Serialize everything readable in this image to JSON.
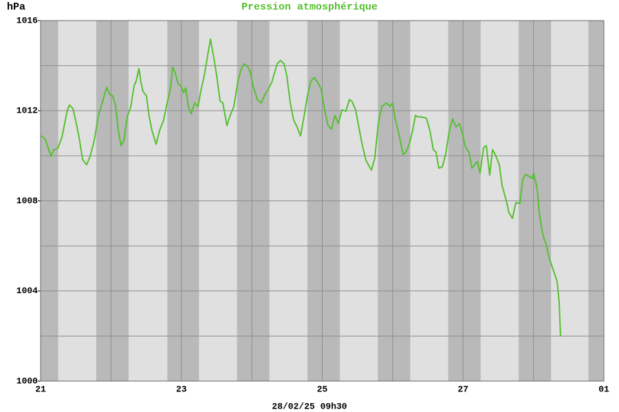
{
  "chart_data": {
    "type": "line",
    "title": "Pression atmosphérique",
    "y_label": "hPa",
    "x_label": "28/02/25 09h30",
    "xlim": [
      21,
      29
    ],
    "xticks": [
      21,
      23,
      25,
      27,
      {
        "value": 29,
        "label": "01"
      }
    ],
    "minor_xticks": [
      22,
      24,
      26,
      28
    ],
    "ylim": [
      1000,
      1016
    ],
    "yticks": [
      1000,
      1004,
      1008,
      1012,
      1016
    ],
    "minor_yticks": [
      1002,
      1006,
      1010,
      1014
    ],
    "grid": true,
    "background_color": "#e0e0e0",
    "shade_color": "#b9b9b9",
    "shaded_ranges": [
      [
        21.0,
        21.25
      ],
      [
        21.79,
        22.25
      ],
      [
        22.8,
        23.25
      ],
      [
        23.79,
        24.25
      ],
      [
        24.79,
        25.25
      ],
      [
        25.79,
        26.25
      ],
      [
        26.79,
        27.25
      ],
      [
        27.79,
        28.25
      ],
      [
        28.78,
        29.0
      ]
    ],
    "series": [
      {
        "name": "Pression",
        "color": "#55c030",
        "x": [
          21.0,
          21.068,
          21.147,
          21.186,
          21.244,
          21.303,
          21.381,
          21.41,
          21.459,
          21.498,
          21.547,
          21.596,
          21.654,
          21.703,
          21.762,
          21.821,
          21.889,
          21.938,
          21.977,
          22.026,
          22.065,
          22.104,
          22.143,
          22.182,
          22.231,
          22.28,
          22.328,
          22.358,
          22.397,
          22.426,
          22.455,
          22.504,
          22.543,
          22.582,
          22.641,
          22.69,
          22.748,
          22.797,
          22.846,
          22.875,
          22.915,
          22.954,
          22.993,
          23.032,
          23.061,
          23.1,
          23.139,
          23.188,
          23.237,
          23.276,
          23.325,
          23.374,
          23.413,
          23.462,
          23.501,
          23.549,
          23.589,
          23.647,
          23.686,
          23.745,
          23.803,
          23.852,
          23.891,
          23.94,
          23.979,
          24.018,
          24.077,
          24.136,
          24.184,
          24.233,
          24.282,
          24.311,
          24.36,
          24.409,
          24.458,
          24.497,
          24.546,
          24.595,
          24.643,
          24.692,
          24.741,
          24.79,
          24.839,
          24.888,
          24.937,
          24.985,
          25.034,
          25.083,
          25.132,
          25.181,
          25.23,
          25.278,
          25.337,
          25.386,
          25.425,
          25.474,
          25.523,
          25.571,
          25.62,
          25.698,
          25.747,
          25.796,
          25.845,
          25.913,
          25.962,
          26.001,
          26.04,
          26.089,
          26.148,
          26.187,
          26.236,
          26.284,
          26.324,
          26.353,
          26.402,
          26.48,
          26.529,
          26.578,
          26.617,
          26.656,
          26.705,
          26.753,
          26.802,
          26.851,
          26.9,
          26.949,
          26.988,
          27.037,
          27.085,
          27.125,
          27.164,
          27.203,
          27.242,
          27.291,
          27.33,
          27.379,
          27.418,
          27.457,
          27.515,
          27.554,
          27.613,
          27.652,
          27.701,
          27.75,
          27.808,
          27.847,
          27.886,
          27.945,
          27.984,
          28.004,
          28.053,
          28.082,
          28.121,
          28.15,
          28.179,
          28.209,
          28.238,
          28.287,
          28.336,
          28.365,
          28.385
        ],
        "values": [
          1010.91,
          1010.73,
          1009.97,
          1010.27,
          1010.33,
          1010.82,
          1012.04,
          1012.25,
          1012.1,
          1011.58,
          1010.82,
          1009.84,
          1009.6,
          1009.97,
          1010.67,
          1011.79,
          1012.5,
          1013.04,
          1012.74,
          1012.65,
          1012.22,
          1011.12,
          1010.45,
          1010.67,
          1011.73,
          1012.16,
          1013.1,
          1013.32,
          1013.87,
          1013.26,
          1012.86,
          1012.65,
          1011.73,
          1011.12,
          1010.51,
          1011.12,
          1011.58,
          1012.34,
          1013.01,
          1013.93,
          1013.65,
          1013.2,
          1013.1,
          1012.8,
          1013.01,
          1012.19,
          1011.86,
          1012.34,
          1012.19,
          1012.89,
          1013.56,
          1014.48,
          1015.18,
          1014.32,
          1013.56,
          1012.43,
          1012.34,
          1011.34,
          1011.73,
          1012.19,
          1013.32,
          1013.87,
          1014.08,
          1013.96,
          1013.71,
          1013.1,
          1012.5,
          1012.34,
          1012.71,
          1012.95,
          1013.26,
          1013.56,
          1014.08,
          1014.23,
          1014.08,
          1013.56,
          1012.34,
          1011.58,
          1011.28,
          1010.88,
          1011.73,
          1012.65,
          1013.32,
          1013.47,
          1013.26,
          1012.95,
          1012.04,
          1011.34,
          1011.18,
          1011.79,
          1011.43,
          1012.04,
          1011.98,
          1012.5,
          1012.4,
          1012.04,
          1011.22,
          1010.45,
          1009.81,
          1009.36,
          1009.9,
          1011.43,
          1012.19,
          1012.34,
          1012.19,
          1012.34,
          1011.58,
          1010.97,
          1010.06,
          1010.15,
          1010.51,
          1011.12,
          1011.79,
          1011.73,
          1011.73,
          1011.67,
          1011.12,
          1010.27,
          1010.15,
          1009.45,
          1009.51,
          1010.06,
          1011.06,
          1011.64,
          1011.28,
          1011.43,
          1011.03,
          1010.36,
          1010.15,
          1009.45,
          1009.6,
          1009.75,
          1009.23,
          1010.36,
          1010.45,
          1009.14,
          1010.27,
          1010.06,
          1009.6,
          1008.69,
          1008.02,
          1007.47,
          1007.22,
          1007.92,
          1007.89,
          1008.93,
          1009.17,
          1009.08,
          1008.99,
          1009.23,
          1008.53,
          1007.47,
          1006.7,
          1006.31,
          1006.1,
          1005.64,
          1005.33,
          1004.88,
          1004.42,
          1003.5,
          1001.98
        ]
      }
    ]
  }
}
